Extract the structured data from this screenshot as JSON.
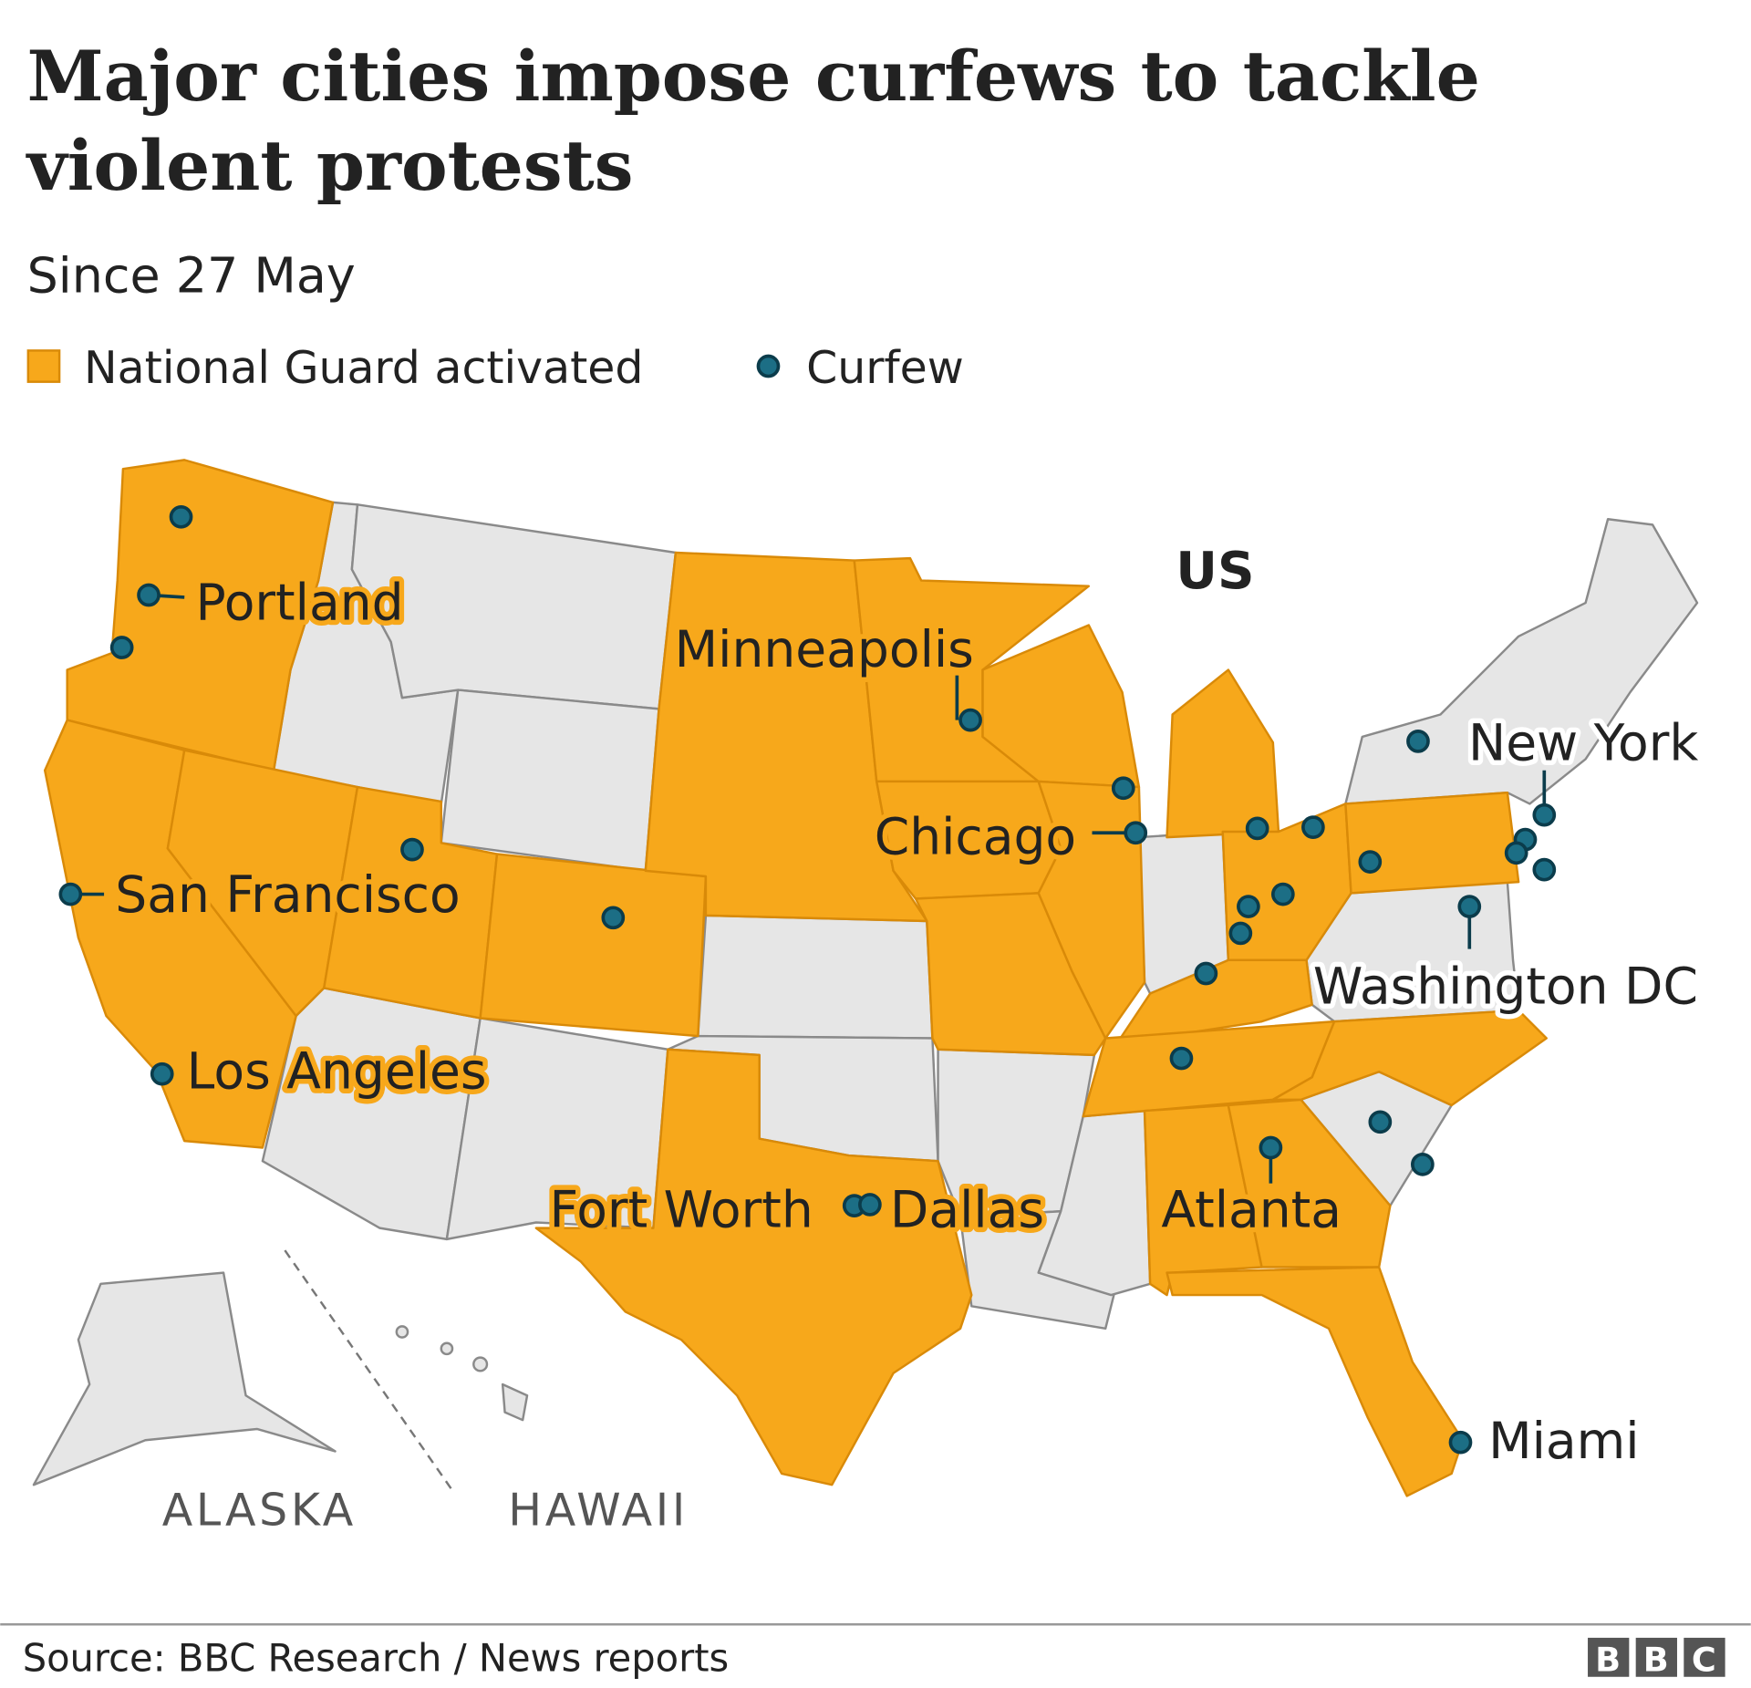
{
  "header": {
    "title": [
      "Major cities impose curfews to tackle",
      "violent protests"
    ],
    "subtitle": "Since 27 May"
  },
  "legend": [
    {
      "label": "National Guard activated",
      "color": "#f7a81b"
    },
    {
      "label": "Curfew",
      "color": "#1c6e85"
    }
  ],
  "map": {
    "country_label": "US",
    "cities": [
      "Portland",
      "Minneapolis",
      "Chicago",
      "San Francisco",
      "Los Angeles",
      "New York",
      "Washington DC",
      "Fort Worth",
      "Dallas",
      "Atlanta",
      "Miami"
    ],
    "insets": [
      "ALASKA",
      "HAWAII"
    ]
  },
  "footer": {
    "source": "Source: BBC Research / News reports",
    "logo": [
      "B",
      "B",
      "C"
    ]
  }
}
